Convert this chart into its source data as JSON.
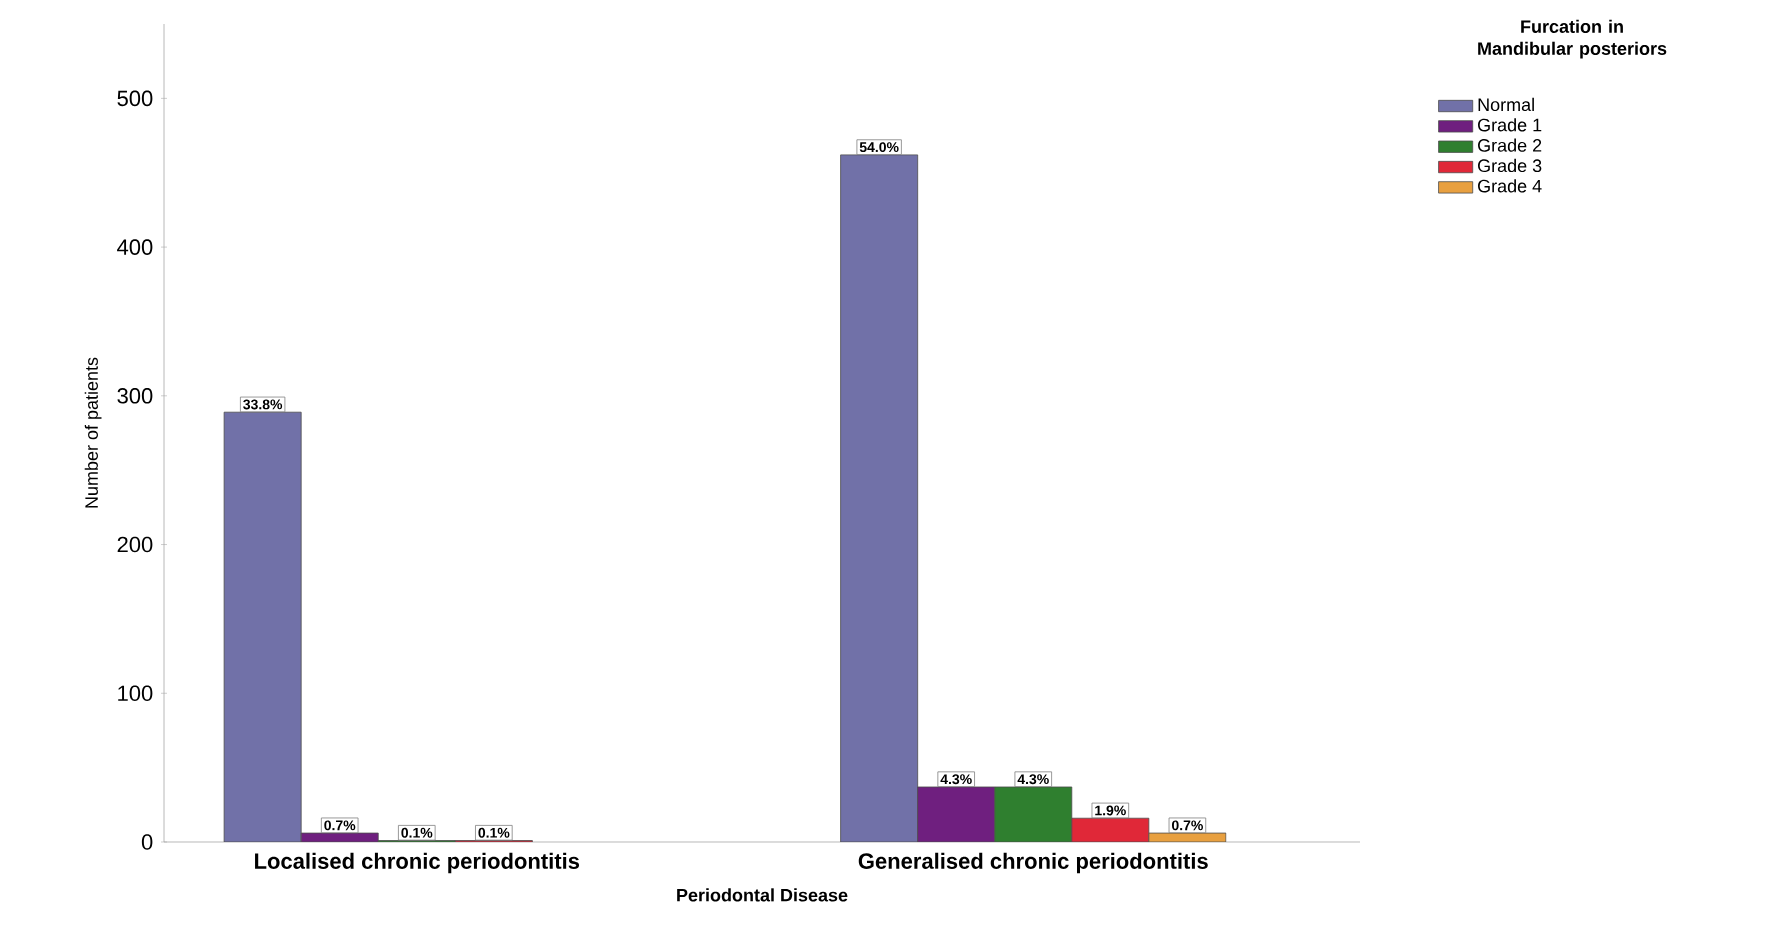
{
  "chart_data": {
    "type": "bar",
    "xlabel": "Periodontal Disease",
    "ylabel": "Number of patients",
    "legend_title": "Furcation in Mandibular posteriors",
    "categories": [
      "Localised chronic periodontitis",
      "Generalised chronic periodontitis"
    ],
    "series": [
      {
        "name": "Normal",
        "color": "#7171a8",
        "values": [
          289,
          462
        ]
      },
      {
        "name": "Grade 1",
        "color": "#6f1f7f",
        "values": [
          6,
          37
        ]
      },
      {
        "name": "Grade 2",
        "color": "#2f7f2f",
        "values": [
          1,
          37
        ]
      },
      {
        "name": "Grade 3",
        "color": "#e02838",
        "values": [
          1,
          16
        ]
      },
      {
        "name": "Grade 4",
        "color": "#e8a040",
        "values": [
          null,
          6
        ]
      }
    ],
    "annotations": [
      "33.8%",
      "0.7%",
      "0.1%",
      "0.1%",
      "54.0%",
      "4.3%",
      "4.3%",
      "1.9%",
      "0.7%"
    ],
    "ylim": [
      0,
      550
    ],
    "yticks": [
      0,
      100,
      200,
      300,
      400,
      500
    ],
    "grid": false,
    "legend": "top right"
  }
}
